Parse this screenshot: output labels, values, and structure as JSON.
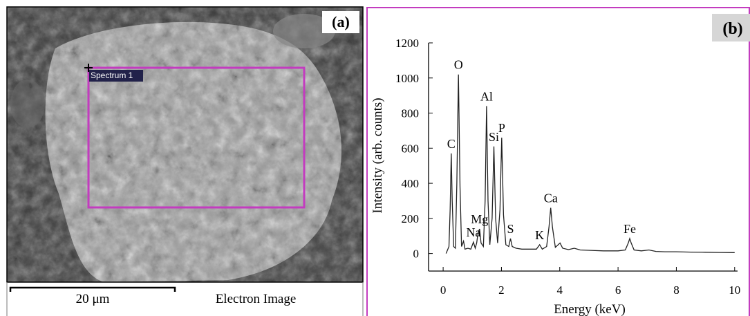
{
  "panel_a": {
    "label": "(a)",
    "region_label": "Spectrum 1",
    "scale_bar": "20 μm",
    "caption": "Electron Image"
  },
  "chart_data": {
    "type": "line",
    "panel_label": "(b)",
    "x_label": "Energy (keV)",
    "y_label": "Intensity (arb. counts)",
    "x": [
      0.1,
      0.2,
      0.24,
      0.277,
      0.31,
      0.36,
      0.42,
      0.47,
      0.525,
      0.58,
      0.63,
      0.7,
      0.75,
      0.85,
      0.95,
      1.04,
      1.1,
      1.15,
      1.2,
      1.25,
      1.3,
      1.38,
      1.44,
      1.49,
      1.54,
      1.6,
      1.68,
      1.74,
      1.8,
      1.87,
      1.95,
      2.01,
      2.07,
      2.15,
      2.25,
      2.31,
      2.37,
      2.5,
      2.7,
      3.0,
      3.2,
      3.31,
      3.4,
      3.55,
      3.63,
      3.69,
      3.75,
      3.85,
      4.01,
      4.1,
      4.3,
      4.5,
      4.7,
      5.0,
      5.5,
      6.0,
      6.25,
      6.35,
      6.4,
      6.45,
      6.55,
      6.8,
      7.06,
      7.3,
      7.6,
      8.0,
      8.5,
      9.0,
      9.5,
      10.0
    ],
    "values": [
      0,
      40,
      250,
      570,
      300,
      40,
      30,
      400,
      1020,
      380,
      40,
      70,
      25,
      30,
      25,
      65,
      30,
      60,
      120,
      140,
      60,
      40,
      300,
      840,
      300,
      50,
      200,
      610,
      200,
      60,
      250,
      660,
      220,
      50,
      40,
      85,
      40,
      30,
      25,
      25,
      25,
      50,
      25,
      40,
      150,
      260,
      150,
      35,
      60,
      30,
      22,
      30,
      20,
      18,
      15,
      15,
      20,
      60,
      85,
      60,
      20,
      15,
      20,
      12,
      10,
      10,
      8,
      7,
      6,
      5
    ],
    "color": "#222222",
    "annotations": [
      {
        "text": "C",
        "x": 0.277,
        "y": 570
      },
      {
        "text": "O",
        "x": 0.525,
        "y": 1020
      },
      {
        "text": "Na",
        "x": 1.04,
        "y": 65
      },
      {
        "text": "Mg",
        "x": 1.25,
        "y": 140
      },
      {
        "text": "Al",
        "x": 1.49,
        "y": 840
      },
      {
        "text": "Si",
        "x": 1.74,
        "y": 610
      },
      {
        "text": "P",
        "x": 2.01,
        "y": 660
      },
      {
        "text": "S",
        "x": 2.31,
        "y": 85
      },
      {
        "text": "K",
        "x": 3.31,
        "y": 50
      },
      {
        "text": "Ca",
        "x": 3.69,
        "y": 260
      },
      {
        "text": "Fe",
        "x": 6.4,
        "y": 85
      }
    ],
    "xlim": [
      -0.5,
      10.1
    ],
    "xticks": [
      0,
      2,
      4,
      6,
      8,
      10
    ],
    "ylim": [
      -100,
      1200
    ],
    "yticks": [
      0,
      200,
      400,
      600,
      800,
      1000,
      1200
    ]
  }
}
